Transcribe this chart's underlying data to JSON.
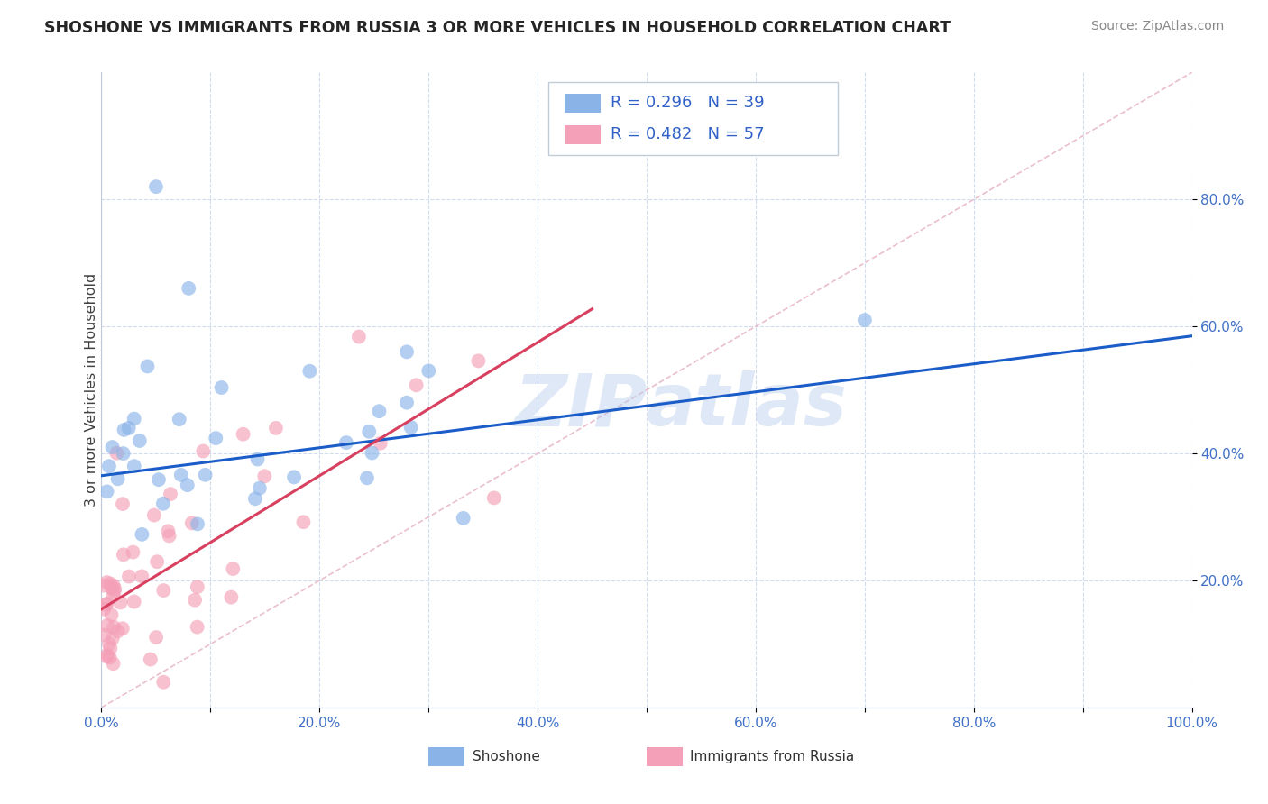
{
  "title": "SHOSHONE VS IMMIGRANTS FROM RUSSIA 3 OR MORE VEHICLES IN HOUSEHOLD CORRELATION CHART",
  "source": "Source: ZipAtlas.com",
  "ylabel": "3 or more Vehicles in Household",
  "xlim": [
    0.0,
    1.0
  ],
  "ylim": [
    0.0,
    1.0
  ],
  "xtick_labels": [
    "0.0%",
    "",
    "20.0%",
    "",
    "40.0%",
    "",
    "60.0%",
    "",
    "80.0%",
    "",
    "100.0%"
  ],
  "xtick_values": [
    0.0,
    0.1,
    0.2,
    0.3,
    0.4,
    0.5,
    0.6,
    0.7,
    0.8,
    0.9,
    1.0
  ],
  "ytick_labels": [
    "20.0%",
    "40.0%",
    "60.0%",
    "80.0%"
  ],
  "ytick_values": [
    0.2,
    0.4,
    0.6,
    0.8
  ],
  "shoshone_color": "#8ab4e8",
  "russia_color": "#f4a0b8",
  "shoshone_line_color": "#1a5cc8",
  "russia_line_color": "#d84060",
  "diagonal_color": "#e8b8c8",
  "R_shoshone": 0.296,
  "N_shoshone": 39,
  "R_russia": 0.482,
  "N_russia": 57,
  "shoshone_intercept": 0.365,
  "shoshone_slope": 0.22,
  "russia_intercept": 0.155,
  "russia_slope": 1.05
}
